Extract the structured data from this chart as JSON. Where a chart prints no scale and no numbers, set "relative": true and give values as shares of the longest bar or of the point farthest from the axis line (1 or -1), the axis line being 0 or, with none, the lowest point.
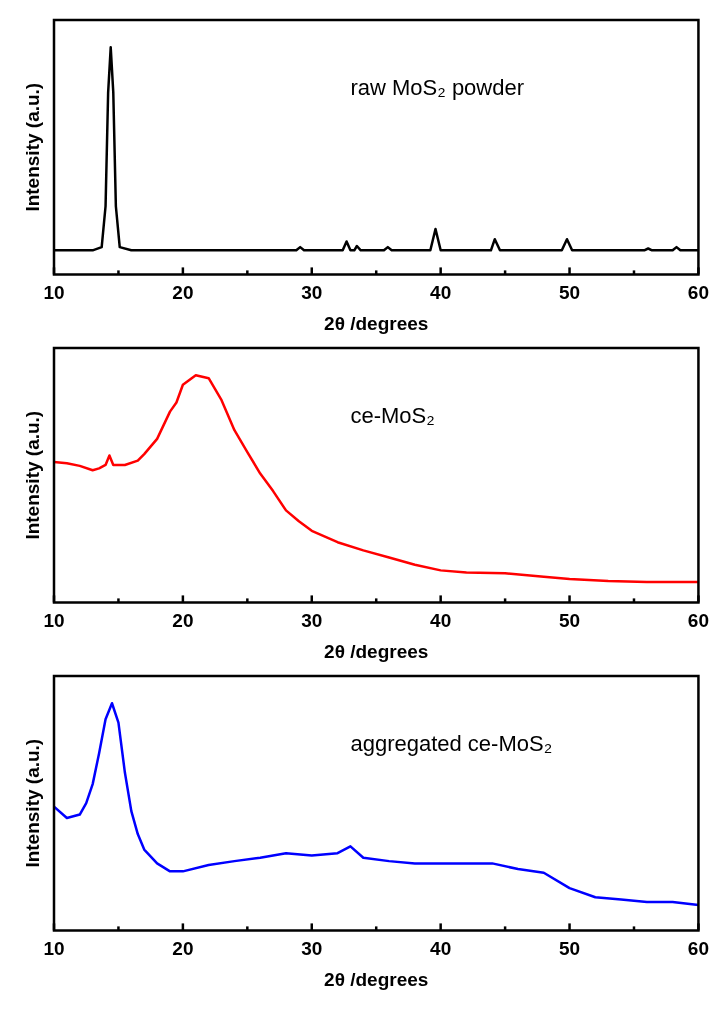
{
  "chart_data": [
    {
      "type": "line",
      "relative": true,
      "xlabel": "2θ /degrees",
      "ylabel": "Intensity (a.u.)",
      "annotations": [
        "raw MoS₂ powder"
      ],
      "xlim": [
        10,
        60
      ],
      "xticks": [
        10,
        {
          "value": 15,
          "label": null
        },
        20,
        {
          "value": 25,
          "label": null
        },
        30,
        {
          "value": 35,
          "label": null
        },
        40,
        {
          "value": 45,
          "label": null
        },
        50,
        {
          "value": 55,
          "label": null
        },
        60
      ],
      "series": [
        {
          "color": "#000000",
          "x": [
            10,
            13,
            13.7,
            14.0,
            14.2,
            14.4,
            14.6,
            14.8,
            15.1,
            16,
            28.8,
            29.1,
            29.4,
            32.4,
            32.7,
            33.0,
            33.3,
            33.5,
            33.8,
            35.6,
            35.9,
            36.2,
            39.2,
            39.6,
            40.0,
            43.9,
            44.2,
            44.6,
            49.4,
            49.8,
            50.2,
            55.8,
            56.1,
            56.4,
            58.0,
            58.3,
            58.6,
            60
          ],
          "values": [
            0.106,
            0.106,
            0.12,
            0.3,
            0.8,
            1,
            0.8,
            0.3,
            0.12,
            0.106,
            0.106,
            0.12,
            0.106,
            0.106,
            0.145,
            0.106,
            0.106,
            0.125,
            0.106,
            0.106,
            0.12,
            0.106,
            0.106,
            0.2,
            0.106,
            0.106,
            0.155,
            0.106,
            0.106,
            0.155,
            0.106,
            0.106,
            0.114,
            0.106,
            0.106,
            0.12,
            0.106,
            0.106
          ]
        }
      ]
    },
    {
      "type": "line",
      "relative": true,
      "xlabel": "2θ /degrees",
      "ylabel": "Intensity (a.u.)",
      "annotations": [
        "ce-MoS₂"
      ],
      "xlim": [
        10,
        60
      ],
      "xticks": [
        10,
        {
          "value": 15,
          "label": null
        },
        20,
        {
          "value": 25,
          "label": null
        },
        30,
        {
          "value": 35,
          "label": null
        },
        40,
        {
          "value": 45,
          "label": null
        },
        50,
        {
          "value": 55,
          "label": null
        },
        60
      ],
      "series": [
        {
          "color": "#ff0000",
          "x": [
            10,
            11,
            12,
            13,
            13.5,
            14,
            14.3,
            14.6,
            15.5,
            16.5,
            17,
            18,
            19,
            19.5,
            20,
            21,
            22,
            23,
            24,
            25,
            26,
            27,
            28,
            29,
            30,
            32,
            34,
            36,
            38,
            40,
            42,
            45,
            48,
            50,
            53,
            56,
            60
          ],
          "values": [
            0.618,
            0.613,
            0.601,
            0.582,
            0.59,
            0.605,
            0.647,
            0.605,
            0.605,
            0.624,
            0.653,
            0.72,
            0.84,
            0.88,
            0.958,
            1,
            0.987,
            0.89,
            0.758,
            0.662,
            0.567,
            0.49,
            0.405,
            0.357,
            0.315,
            0.265,
            0.229,
            0.198,
            0.166,
            0.141,
            0.132,
            0.128,
            0.113,
            0.103,
            0.094,
            0.09,
            0.09
          ]
        }
      ]
    },
    {
      "type": "line",
      "relative": true,
      "xlabel": "2θ /degrees",
      "ylabel": "Intensity (a.u.)",
      "annotations": [
        "aggregated ce-MoS₂"
      ],
      "xlim": [
        10,
        60
      ],
      "xticks": [
        10,
        {
          "value": 15,
          "label": null
        },
        20,
        {
          "value": 25,
          "label": null
        },
        30,
        {
          "value": 35,
          "label": null
        },
        40,
        {
          "value": 45,
          "label": null
        },
        50,
        {
          "value": 55,
          "label": null
        },
        60
      ],
      "series": [
        {
          "color": "#0000ff",
          "x": [
            10,
            11,
            12,
            12.5,
            13,
            13.5,
            14,
            14.5,
            15,
            15.5,
            16,
            16.5,
            17,
            18,
            19,
            20,
            22,
            24,
            26,
            28,
            30,
            32,
            33,
            34,
            36,
            38,
            40,
            42,
            44,
            46,
            48,
            50,
            52,
            54,
            56,
            58,
            60
          ],
          "values": [
            0.545,
            0.495,
            0.51,
            0.56,
            0.644,
            0.78,
            0.93,
            1,
            0.915,
            0.695,
            0.525,
            0.424,
            0.356,
            0.295,
            0.26,
            0.26,
            0.288,
            0.305,
            0.32,
            0.34,
            0.33,
            0.34,
            0.37,
            0.32,
            0.305,
            0.295,
            0.295,
            0.295,
            0.295,
            0.27,
            0.254,
            0.186,
            0.146,
            0.136,
            0.125,
            0.125,
            0.112
          ]
        }
      ]
    }
  ]
}
